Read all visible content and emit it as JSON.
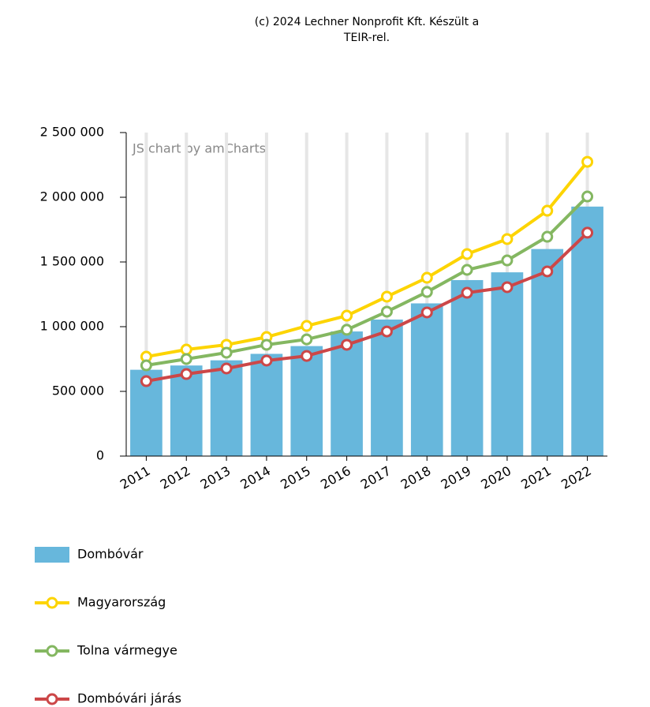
{
  "chart_data": {
    "type": "bar-line",
    "credit": [
      "(c) 2024 Lechner Nonprofit Kft. Készült a",
      "TEIR-rel."
    ],
    "watermark": "JS chart by amCharts",
    "categories": [
      "2011",
      "2012",
      "2013",
      "2014",
      "2015",
      "2016",
      "2017",
      "2018",
      "2019",
      "2020",
      "2021",
      "2022"
    ],
    "ylim": [
      0,
      2500000
    ],
    "yticks": [
      {
        "value": 0,
        "label": "0"
      },
      {
        "value": 500000,
        "label": "500 000"
      },
      {
        "value": 1000000,
        "label": "1 000 000"
      },
      {
        "value": 1500000,
        "label": "1 500 000"
      },
      {
        "value": 2000000,
        "label": "2 000 000"
      },
      {
        "value": 2500000,
        "label": "2 500 000"
      }
    ],
    "grid": true,
    "series": [
      {
        "name": "Dombóvár",
        "kind": "bar",
        "color": "#67b7dc",
        "values": [
          667000,
          700000,
          740000,
          790000,
          850000,
          963000,
          1055000,
          1180000,
          1360000,
          1420000,
          1600000,
          1928000
        ]
      },
      {
        "name": "Magyarország",
        "kind": "line",
        "color": "#fdd400",
        "values": [
          768000,
          823000,
          860000,
          920000,
          1006000,
          1085000,
          1232000,
          1378000,
          1561000,
          1677000,
          1896000,
          2274000
        ]
      },
      {
        "name": "Tolna vármegye",
        "kind": "line",
        "color": "#84b761",
        "values": [
          701000,
          750000,
          799000,
          860000,
          902000,
          976000,
          1116000,
          1268000,
          1439000,
          1512000,
          1695000,
          2006000
        ]
      },
      {
        "name": "Dombóvári járás",
        "kind": "line",
        "color": "#cc4748",
        "values": [
          579000,
          634000,
          677000,
          738000,
          774000,
          860000,
          963000,
          1110000,
          1262000,
          1305000,
          1427000,
          1726000
        ]
      }
    ]
  }
}
